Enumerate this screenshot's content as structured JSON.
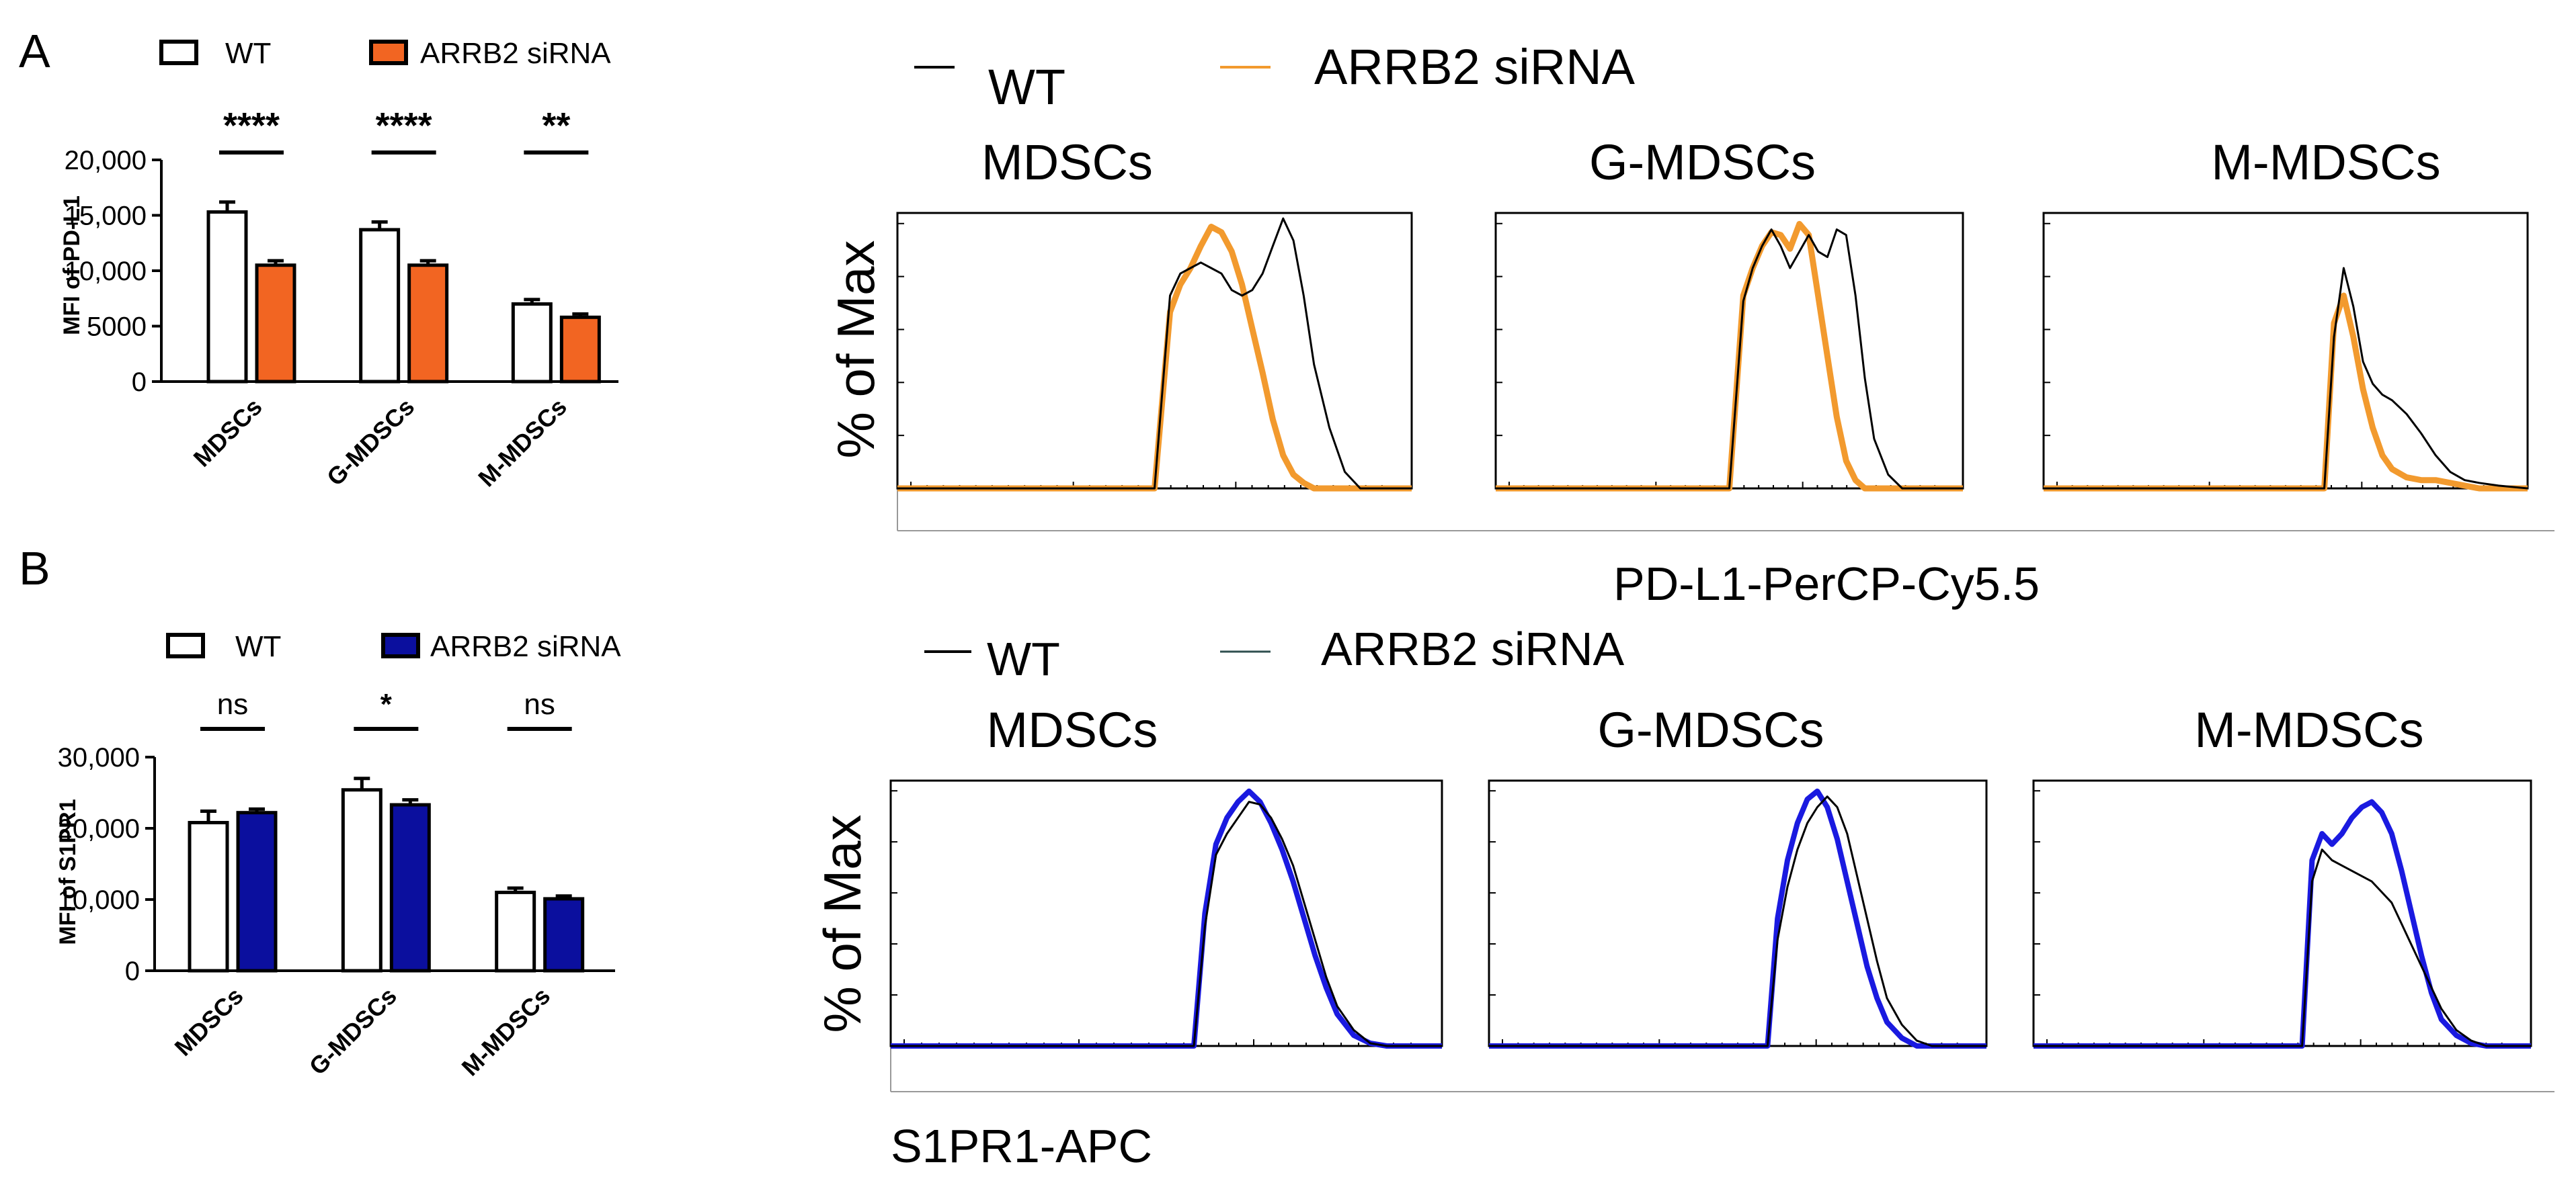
{
  "colors": {
    "wt": "#000000",
    "siRNA_A": "#f26522",
    "siRNA_B": "#0b0f9e"
  },
  "panel_A": {
    "letter": "A",
    "legend": [
      "WT",
      "ARRB2 siRNA"
    ],
    "chart_data": {
      "type": "bar",
      "title": "",
      "ylabel": "MFI of PD-L1",
      "ylim": [
        0,
        20000
      ],
      "yticks": [
        "0",
        "5000",
        "10,000",
        "15,000",
        "20,000"
      ],
      "ytick_values": [
        0,
        5000,
        10000,
        15000,
        20000
      ],
      "categories": [
        "MDSCs",
        "G-MDSCs",
        "M-MDSCs"
      ],
      "series": [
        {
          "name": "WT",
          "values": [
            15300,
            13700,
            7000
          ],
          "errors": [
            900,
            700,
            400
          ]
        },
        {
          "name": "ARRB2 siRNA",
          "values": [
            10500,
            10500,
            5800
          ],
          "errors": [
            400,
            400,
            300
          ]
        }
      ],
      "significance": [
        "****",
        "****",
        "**"
      ]
    }
  },
  "panel_B": {
    "letter": "B",
    "legend": [
      "WT",
      "ARRB2 siRNA"
    ],
    "chart_data": {
      "type": "bar",
      "title": "",
      "ylabel": "MFI of S1PR1",
      "ylim": [
        0,
        30000
      ],
      "yticks": [
        "0",
        "10,000",
        "20,000",
        "30,000"
      ],
      "ytick_values": [
        0,
        10000,
        20000,
        30000
      ],
      "categories": [
        "MDSCs",
        "G-MDSCs",
        "M-MDSCs"
      ],
      "series": [
        {
          "name": "WT",
          "values": [
            20800,
            25400,
            11000
          ],
          "errors": [
            1600,
            1600,
            600
          ]
        },
        {
          "name": "ARRB2 siRNA",
          "values": [
            22200,
            23300,
            10100
          ],
          "errors": [
            500,
            700,
            400
          ]
        }
      ],
      "significance": [
        "ns",
        "*",
        "ns"
      ]
    }
  },
  "histo_top": {
    "legend": [
      "WT",
      "ARRB2 siRNA"
    ],
    "ylabel": "% of Max",
    "xlabel": "PD-L1-PerCP-Cy5.5",
    "chart_data": {
      "type": "line",
      "panels": [
        {
          "title": "MDSCs",
          "x": [
            0.0,
            0.5,
            0.53,
            0.55,
            0.57,
            0.59,
            0.61,
            0.63,
            0.65,
            0.67,
            0.69,
            0.71,
            0.73,
            0.75,
            0.77,
            0.79,
            0.81,
            0.84,
            0.87,
            0.9,
            1.0
          ],
          "wt": [
            0,
            0,
            0.7,
            0.78,
            0.8,
            0.82,
            0.8,
            0.78,
            0.72,
            0.7,
            0.72,
            0.78,
            0.88,
            0.98,
            0.9,
            0.7,
            0.45,
            0.22,
            0.06,
            0,
            0
          ],
          "siRNA": [
            0,
            0,
            0.64,
            0.74,
            0.8,
            0.88,
            0.95,
            0.93,
            0.86,
            0.74,
            0.58,
            0.42,
            0.25,
            0.12,
            0.05,
            0.02,
            0,
            0,
            0,
            0,
            0
          ]
        },
        {
          "title": "G-MDSCs",
          "x": [
            0.0,
            0.5,
            0.53,
            0.55,
            0.57,
            0.59,
            0.61,
            0.63,
            0.65,
            0.67,
            0.69,
            0.71,
            0.73,
            0.75,
            0.77,
            0.79,
            0.81,
            0.84,
            0.87,
            0.9,
            1.0
          ],
          "wt": [
            0,
            0,
            0.68,
            0.8,
            0.88,
            0.94,
            0.88,
            0.8,
            0.86,
            0.92,
            0.86,
            0.84,
            0.94,
            0.92,
            0.7,
            0.4,
            0.18,
            0.05,
            0,
            0,
            0
          ],
          "siRNA": [
            0,
            0,
            0.7,
            0.8,
            0.88,
            0.93,
            0.92,
            0.87,
            0.96,
            0.92,
            0.7,
            0.48,
            0.26,
            0.1,
            0.03,
            0,
            0,
            0,
            0,
            0,
            0
          ]
        },
        {
          "title": "M-MDSCs",
          "x": [
            0.0,
            0.58,
            0.6,
            0.62,
            0.64,
            0.66,
            0.68,
            0.7,
            0.72,
            0.75,
            0.78,
            0.81,
            0.84,
            0.87,
            0.9,
            0.94,
            1.0
          ],
          "wt": [
            0,
            0,
            0.55,
            0.8,
            0.66,
            0.46,
            0.38,
            0.34,
            0.32,
            0.27,
            0.2,
            0.12,
            0.06,
            0.03,
            0.02,
            0.01,
            0
          ],
          "siRNA": [
            0,
            0,
            0.6,
            0.7,
            0.55,
            0.36,
            0.22,
            0.12,
            0.07,
            0.04,
            0.03,
            0.03,
            0.02,
            0.01,
            0,
            0,
            0
          ]
        }
      ]
    }
  },
  "histo_bottom": {
    "legend": [
      "WT",
      "ARRB2 siRNA"
    ],
    "ylabel": "% of Max",
    "xlabel": "S1PR1-APC",
    "chart_data": {
      "type": "line",
      "panels": [
        {
          "title": "MDSCs",
          "x": [
            0.0,
            0.55,
            0.57,
            0.59,
            0.61,
            0.63,
            0.65,
            0.67,
            0.69,
            0.71,
            0.73,
            0.75,
            0.77,
            0.79,
            0.81,
            0.84,
            0.87,
            0.9,
            1.0
          ],
          "wt": [
            0,
            0,
            0.45,
            0.72,
            0.8,
            0.86,
            0.92,
            0.91,
            0.86,
            0.78,
            0.68,
            0.54,
            0.4,
            0.26,
            0.15,
            0.06,
            0.01,
            0,
            0
          ],
          "siRNA": [
            0,
            0,
            0.5,
            0.76,
            0.86,
            0.92,
            0.96,
            0.92,
            0.84,
            0.74,
            0.62,
            0.48,
            0.34,
            0.22,
            0.12,
            0.04,
            0.01,
            0,
            0
          ]
        },
        {
          "title": "G-MDSCs",
          "x": [
            0.0,
            0.56,
            0.58,
            0.6,
            0.62,
            0.64,
            0.66,
            0.68,
            0.7,
            0.72,
            0.74,
            0.76,
            0.78,
            0.8,
            0.83,
            0.86,
            0.89,
            1.0
          ],
          "wt": [
            0,
            0,
            0.4,
            0.6,
            0.74,
            0.84,
            0.9,
            0.94,
            0.9,
            0.8,
            0.64,
            0.48,
            0.32,
            0.18,
            0.08,
            0.02,
            0,
            0
          ],
          "siRNA": [
            0,
            0,
            0.48,
            0.7,
            0.84,
            0.93,
            0.96,
            0.9,
            0.78,
            0.62,
            0.46,
            0.3,
            0.18,
            0.09,
            0.03,
            0,
            0,
            0
          ]
        },
        {
          "title": "M-MDSCs",
          "x": [
            0.0,
            0.54,
            0.56,
            0.58,
            0.6,
            0.62,
            0.64,
            0.66,
            0.68,
            0.7,
            0.72,
            0.74,
            0.76,
            0.78,
            0.8,
            0.82,
            0.85,
            0.88,
            0.91,
            1.0
          ],
          "wt": [
            0,
            0,
            0.62,
            0.74,
            0.7,
            0.68,
            0.66,
            0.64,
            0.62,
            0.58,
            0.54,
            0.46,
            0.38,
            0.3,
            0.22,
            0.14,
            0.06,
            0.02,
            0,
            0
          ],
          "siRNA": [
            0,
            0,
            0.7,
            0.8,
            0.76,
            0.8,
            0.86,
            0.9,
            0.92,
            0.88,
            0.8,
            0.66,
            0.5,
            0.34,
            0.2,
            0.1,
            0.04,
            0.01,
            0,
            0
          ]
        }
      ]
    }
  }
}
